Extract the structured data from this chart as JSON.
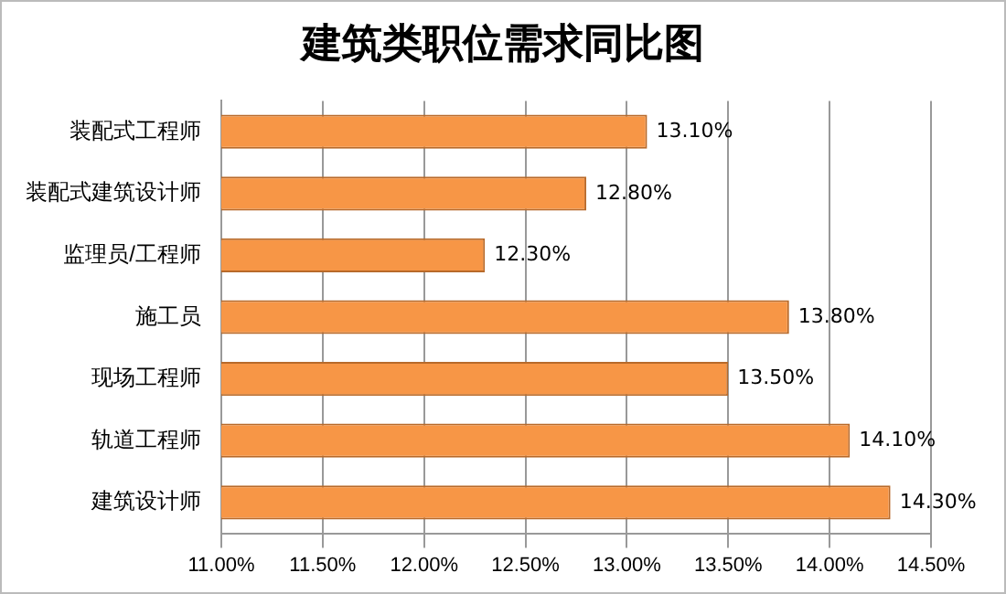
{
  "chart_data": {
    "type": "bar",
    "orientation": "horizontal",
    "title": "建筑类职位需求同比图",
    "categories": [
      "装配式工程师",
      "装配式建筑设计师",
      "监理员/工程师",
      "施工员",
      "现场工程师",
      "轨道工程师",
      "建筑设计师"
    ],
    "values": [
      13.1,
      12.8,
      12.3,
      13.8,
      13.5,
      14.1,
      14.3
    ],
    "value_labels": [
      "13.10%",
      "12.80%",
      "12.30%",
      "13.80%",
      "13.50%",
      "14.10%",
      "14.30%"
    ],
    "color": "#f79646",
    "xlim": [
      11,
      14.5
    ],
    "xticks": [
      {
        "value": 11,
        "label": "11.00%"
      },
      {
        "value": 11.5,
        "label": "11.50%"
      },
      {
        "value": 12,
        "label": "12.00%"
      },
      {
        "value": 12.5,
        "label": "12.50%"
      },
      {
        "value": 13,
        "label": "13.00%"
      },
      {
        "value": 13.5,
        "label": "13.50%"
      },
      {
        "value": 14,
        "label": "14.00%"
      },
      {
        "value": 14.5,
        "label": "14.50%"
      }
    ],
    "grid": "x",
    "legend": false
  }
}
